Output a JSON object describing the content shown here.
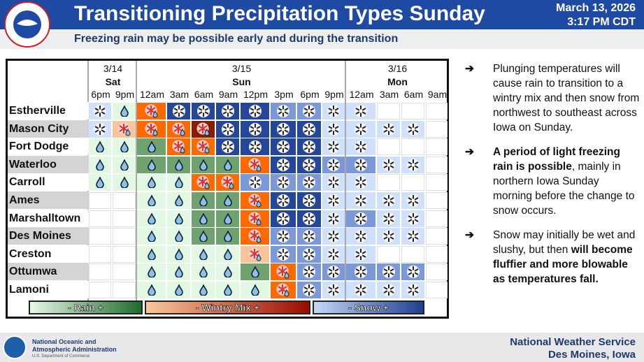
{
  "header": {
    "title": "Transitioning Precipitation Types Sunday",
    "date": "March 13, 2026",
    "time": "3:17 PM CDT",
    "subtitle": "Freezing rain may be possible early and during the transition",
    "logo_text": "NATIONAL WEATHER SERVICE"
  },
  "grid": {
    "days": [
      {
        "date": "3/14",
        "day": "Sat",
        "span": 2
      },
      {
        "date": "3/15",
        "day": "Sun",
        "span": 8
      },
      {
        "date": "3/16",
        "day": "Mon",
        "span": 4
      }
    ],
    "times": [
      "6pm",
      "9pm",
      "12am",
      "3am",
      "6am",
      "9am",
      "12pm",
      "3pm",
      "6pm",
      "9pm",
      "12am",
      "3am",
      "6am",
      "9am"
    ],
    "rows": [
      {
        "city": "Estherville",
        "cells": [
          "s1",
          "r1",
          "m2",
          "s3",
          "s3",
          "s3",
          "s3",
          "s2",
          "s2",
          "s1",
          "s1",
          "",
          "",
          ""
        ]
      },
      {
        "city": "Mason City",
        "cells": [
          "s1",
          "m1",
          "m2",
          "m2",
          "m3",
          "s3",
          "s3",
          "s3",
          "s3",
          "s1",
          "s1",
          "s1",
          "s1",
          ""
        ]
      },
      {
        "city": "Fort Dodge",
        "cells": [
          "r1",
          "r1",
          "r2",
          "m2",
          "m2",
          "s3",
          "s3",
          "s3",
          "s3",
          "s1",
          "s1",
          "",
          "",
          ""
        ]
      },
      {
        "city": "Waterloo",
        "cells": [
          "r1",
          "r1",
          "r2",
          "r2",
          "r2",
          "r2",
          "m2",
          "s3",
          "s3",
          "s2",
          "s2",
          "s1",
          "s1",
          ""
        ]
      },
      {
        "city": "Carroll",
        "cells": [
          "r1",
          "r1",
          "r1",
          "r1",
          "m2",
          "m2",
          "s2",
          "s2",
          "s2",
          "s1",
          "s1",
          "",
          "",
          ""
        ]
      },
      {
        "city": "Ames",
        "cells": [
          "",
          "",
          "r1",
          "r1",
          "r2",
          "r2",
          "m2",
          "s3",
          "s3",
          "s1",
          "s1",
          "s1",
          "s1",
          ""
        ]
      },
      {
        "city": "Marshalltown",
        "cells": [
          "",
          "",
          "r1",
          "r1",
          "r2",
          "r2",
          "m2",
          "s3",
          "s3",
          "s1",
          "s2",
          "s1",
          "s1",
          ""
        ]
      },
      {
        "city": "Des Moines",
        "cells": [
          "",
          "",
          "r1",
          "r1",
          "r2",
          "r2",
          "m2",
          "s2",
          "s2",
          "s1",
          "s1",
          "s1",
          "s1",
          ""
        ]
      },
      {
        "city": "Creston",
        "cells": [
          "",
          "",
          "r1",
          "r1",
          "r1",
          "r1",
          "m1",
          "s2",
          "s2",
          "s1",
          "s1",
          "",
          "",
          ""
        ]
      },
      {
        "city": "Ottumwa",
        "cells": [
          "",
          "",
          "r1",
          "r1",
          "r1",
          "r1",
          "r2",
          "m2",
          "s2",
          "s2",
          "s2",
          "s2",
          "s2",
          ""
        ]
      },
      {
        "city": "Lamoni",
        "cells": [
          "",
          "",
          "r1",
          "r1",
          "r1",
          "r1",
          "r1",
          "m2",
          "s2",
          "s1",
          "s1",
          "s1",
          "s1",
          ""
        ]
      }
    ],
    "colors": {
      "r1": "#e3f8e3",
      "r2": "#6fa26f",
      "m1": "#f8c49a",
      "m2": "#ff6a00",
      "m3": "#8a1c00",
      "s1": "#cfe0fb",
      "s2": "#7b98d8",
      "s3": "#25479a"
    }
  },
  "legend": {
    "rain": "- Rain +",
    "mix": "- Wintry Mix +",
    "snow": "- Snow +"
  },
  "side": [
    {
      "arrow": "➔",
      "parts": [
        {
          "t": "Plunging temperatures will cause rain to transition to a wintry mix and then snow from northwest to southeast across Iowa on Sunday.",
          "b": false
        }
      ]
    },
    {
      "arrow": "➔",
      "parts": [
        {
          "t": "A period of light freezing rain is possible",
          "b": true
        },
        {
          "t": ", mainly in northern Iowa Sunday morning before the change to snow occurs.",
          "b": false
        }
      ]
    },
    {
      "arrow": "➔",
      "parts": [
        {
          "t": "Snow may initially be wet and slushy, but then ",
          "b": false
        },
        {
          "t": "will become fluffier and more blowable as temperatures fall.",
          "b": true
        }
      ]
    }
  ],
  "footer": {
    "noaa": "National Oceanic and Atmospheric Administration",
    "noaa_sub": "U.S. Department of Commerce",
    "nws": "National Weather Service",
    "office": "Des Moines, Iowa"
  }
}
